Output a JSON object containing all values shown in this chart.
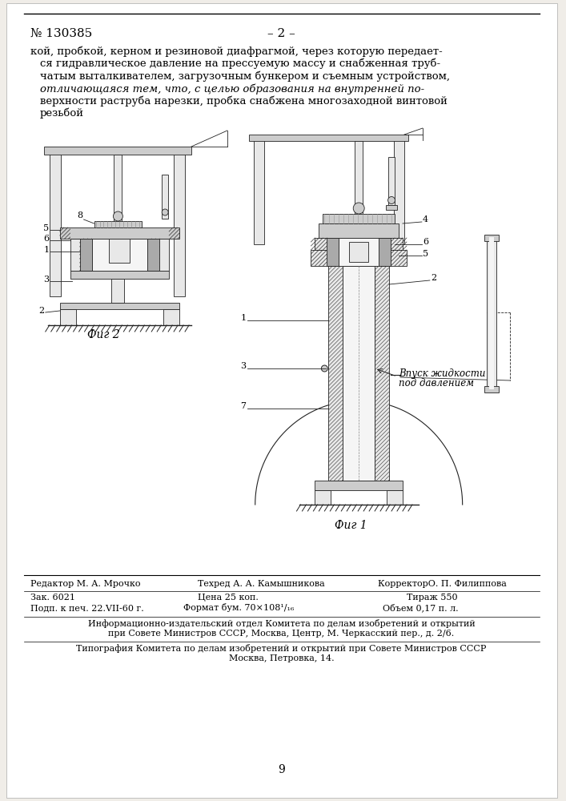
{
  "bg_color": "#f0ede8",
  "page_bg": "#ffffff",
  "patent_number": "№ 130385",
  "page_number": "– 2 –",
  "body_text": [
    "кой, пробкой, керном и резиновой диафрагмой, через которую передает-",
    "ся гидравлическое давление на прессуемую массу и снабженная труб-",
    "чатым выталкивателем, загрузочным бункером и съемным устройством,",
    "отличающаяся тем, что, с целью образования на внутренней по-",
    "верхности раструба нарезки, пробка снабжена многозаходной винтовой",
    "резьбой"
  ],
  "fig2_label": "Фиг 2",
  "fig1_label": "Фиг 1",
  "annotation_text_line1": "Впуск жидкости",
  "annotation_text_line2": "под давлением",
  "footer_editor": "Редактор М. А. Мрочко",
  "footer_techred": "Техред А. А. Камышникова",
  "footer_corrector": "КорректорО. П. Филиппова",
  "footer_zak": "Зак. 6021",
  "footer_price": "Цена 25 коп.",
  "footer_tirazh": "Тираж 550",
  "footer_podp": "Подп. к печ. 22.VII-60 г.",
  "footer_format": "Формат бум. 70×108¹/₁₆",
  "footer_obem": "Объем 0,17 п. л.",
  "footer_info1": "Информационно-издательский отдел Комитета по делам изобретений и открытий",
  "footer_info2": "при Совете Министров СССР, Москва, Центр, М. Черкасский пер., д. 2/6.",
  "footer_typo1": "Типография Комитета по делам изобретений и открытий при Совете Министров СССР",
  "footer_typo2": "Москва, Петровка, 14.",
  "page_num_bottom": "9"
}
